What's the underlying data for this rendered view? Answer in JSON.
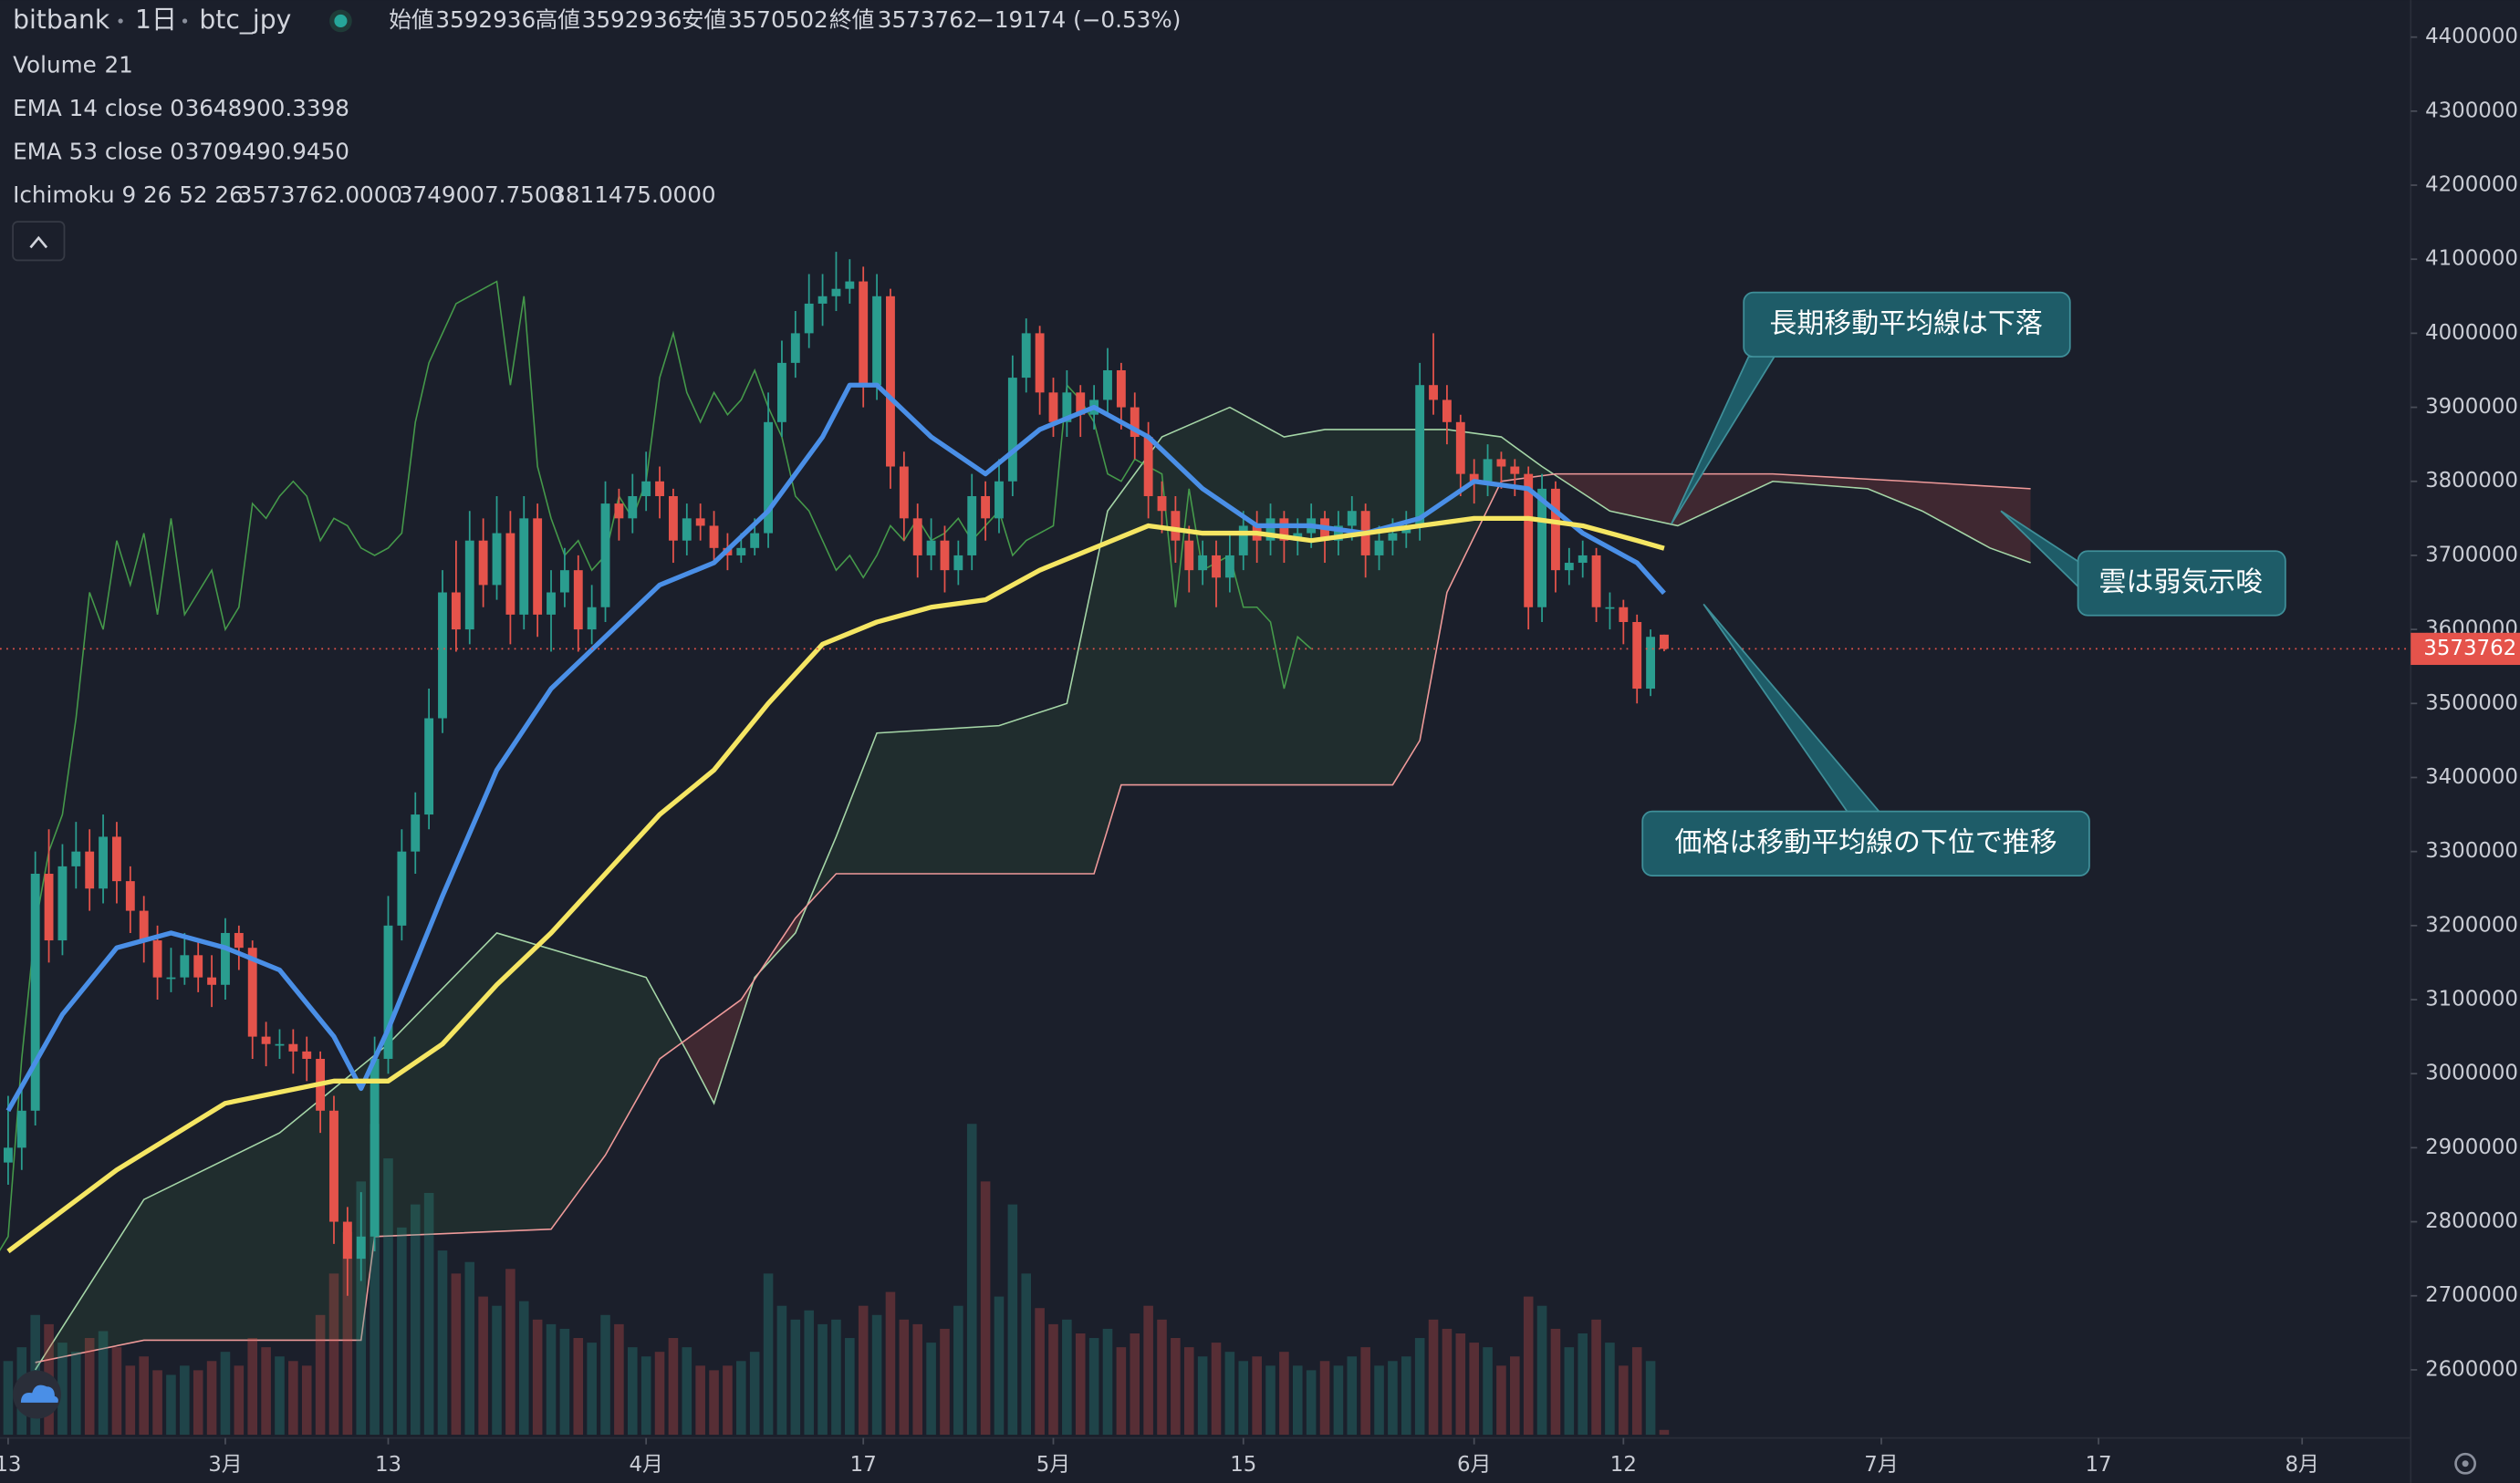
{
  "header": {
    "exchange": "bitbank",
    "interval": "1日",
    "symbol": "btc_jpy",
    "ohlc_labels": [
      "始値",
      "高値",
      "安値",
      "終値"
    ],
    "change": "−19174 (−0.53%)"
  },
  "chart_data": {
    "type": "candlestick",
    "up_color": "#2a9d8f",
    "down_color": "#e5534b",
    "xlim": [
      -0.6,
      177
    ],
    "xticks": [
      {
        "value": 0,
        "label": "13"
      },
      {
        "value": 16,
        "label": "3月"
      },
      {
        "value": 28,
        "label": "13"
      },
      {
        "value": 47,
        "label": "4月"
      },
      {
        "value": 63,
        "label": "17"
      },
      {
        "value": 77,
        "label": "5月"
      },
      {
        "value": 91,
        "label": "15"
      },
      {
        "value": 108,
        "label": "6月"
      },
      {
        "value": 119,
        "label": "12"
      },
      {
        "value": 138,
        "label": "7月"
      },
      {
        "value": 154,
        "label": "17"
      },
      {
        "value": 169,
        "label": "8月"
      }
    ],
    "ylim": [
      2508000,
      4450000
    ],
    "yticks": [
      2600000,
      2700000,
      2800000,
      2900000,
      3000000,
      3100000,
      3200000,
      3300000,
      3400000,
      3500000,
      3600000,
      3700000,
      3800000,
      3900000,
      4000000,
      4100000,
      4200000,
      4300000,
      4400000
    ],
    "candles": [
      [
        2880000,
        2970000,
        2850000,
        2900000
      ],
      [
        2900000,
        2980000,
        2870000,
        2950000
      ],
      [
        2950000,
        3300000,
        2930000,
        3270000
      ],
      [
        3270000,
        3330000,
        3150000,
        3180000
      ],
      [
        3180000,
        3310000,
        3160000,
        3280000
      ],
      [
        3280000,
        3340000,
        3250000,
        3300000
      ],
      [
        3300000,
        3330000,
        3220000,
        3250000
      ],
      [
        3250000,
        3350000,
        3230000,
        3320000
      ],
      [
        3320000,
        3340000,
        3230000,
        3260000
      ],
      [
        3260000,
        3280000,
        3190000,
        3220000
      ],
      [
        3220000,
        3240000,
        3150000,
        3180000
      ],
      [
        3180000,
        3200000,
        3100000,
        3130000
      ],
      [
        3130000,
        3170000,
        3110000,
        3130000
      ],
      [
        3130000,
        3190000,
        3120000,
        3160000
      ],
      [
        3160000,
        3180000,
        3110000,
        3130000
      ],
      [
        3130000,
        3160000,
        3090000,
        3120000
      ],
      [
        3120000,
        3210000,
        3100000,
        3190000
      ],
      [
        3190000,
        3200000,
        3140000,
        3170000
      ],
      [
        3170000,
        3180000,
        3020000,
        3050000
      ],
      [
        3050000,
        3070000,
        3010000,
        3040000
      ],
      [
        3040000,
        3060000,
        3020000,
        3040000
      ],
      [
        3040000,
        3060000,
        3000000,
        3030000
      ],
      [
        3030000,
        3050000,
        2990000,
        3020000
      ],
      [
        3020000,
        3030000,
        2920000,
        2950000
      ],
      [
        2950000,
        2970000,
        2770000,
        2800000
      ],
      [
        2800000,
        2820000,
        2700000,
        2750000
      ],
      [
        2750000,
        2840000,
        2720000,
        2780000
      ],
      [
        2780000,
        3050000,
        2760000,
        3020000
      ],
      [
        3020000,
        3240000,
        3000000,
        3200000
      ],
      [
        3200000,
        3330000,
        3180000,
        3300000
      ],
      [
        3300000,
        3380000,
        3270000,
        3350000
      ],
      [
        3350000,
        3520000,
        3330000,
        3480000
      ],
      [
        3480000,
        3680000,
        3460000,
        3650000
      ],
      [
        3650000,
        3720000,
        3570000,
        3600000
      ],
      [
        3600000,
        3760000,
        3580000,
        3720000
      ],
      [
        3720000,
        3750000,
        3630000,
        3660000
      ],
      [
        3660000,
        3780000,
        3640000,
        3730000
      ],
      [
        3730000,
        3760000,
        3580000,
        3620000
      ],
      [
        3620000,
        3780000,
        3600000,
        3750000
      ],
      [
        3750000,
        3770000,
        3590000,
        3620000
      ],
      [
        3620000,
        3680000,
        3570000,
        3650000
      ],
      [
        3650000,
        3710000,
        3630000,
        3680000
      ],
      [
        3680000,
        3700000,
        3570000,
        3600000
      ],
      [
        3600000,
        3660000,
        3580000,
        3630000
      ],
      [
        3630000,
        3800000,
        3610000,
        3770000
      ],
      [
        3770000,
        3790000,
        3720000,
        3750000
      ],
      [
        3750000,
        3810000,
        3730000,
        3780000
      ],
      [
        3780000,
        3840000,
        3760000,
        3800000
      ],
      [
        3800000,
        3820000,
        3750000,
        3780000
      ],
      [
        3780000,
        3790000,
        3690000,
        3720000
      ],
      [
        3720000,
        3770000,
        3700000,
        3750000
      ],
      [
        3750000,
        3770000,
        3720000,
        3740000
      ],
      [
        3740000,
        3760000,
        3690000,
        3710000
      ],
      [
        3710000,
        3730000,
        3680000,
        3700000
      ],
      [
        3700000,
        3730000,
        3690000,
        3710000
      ],
      [
        3710000,
        3750000,
        3700000,
        3730000
      ],
      [
        3730000,
        3920000,
        3710000,
        3880000
      ],
      [
        3880000,
        3990000,
        3860000,
        3960000
      ],
      [
        3960000,
        4030000,
        3940000,
        4000000
      ],
      [
        4000000,
        4080000,
        3980000,
        4040000
      ],
      [
        4040000,
        4080000,
        4010000,
        4050000
      ],
      [
        4050000,
        4110000,
        4030000,
        4060000
      ],
      [
        4060000,
        4100000,
        4040000,
        4070000
      ],
      [
        4070000,
        4090000,
        3900000,
        3930000
      ],
      [
        3930000,
        4080000,
        3910000,
        4050000
      ],
      [
        4050000,
        4060000,
        3790000,
        3820000
      ],
      [
        3820000,
        3840000,
        3720000,
        3750000
      ],
      [
        3750000,
        3770000,
        3670000,
        3700000
      ],
      [
        3700000,
        3750000,
        3680000,
        3720000
      ],
      [
        3720000,
        3740000,
        3650000,
        3680000
      ],
      [
        3680000,
        3720000,
        3660000,
        3700000
      ],
      [
        3700000,
        3810000,
        3680000,
        3780000
      ],
      [
        3780000,
        3800000,
        3720000,
        3750000
      ],
      [
        3750000,
        3830000,
        3730000,
        3800000
      ],
      [
        3800000,
        3970000,
        3780000,
        3940000
      ],
      [
        3940000,
        4020000,
        3920000,
        4000000
      ],
      [
        4000000,
        4010000,
        3890000,
        3920000
      ],
      [
        3920000,
        3940000,
        3860000,
        3880000
      ],
      [
        3880000,
        3950000,
        3860000,
        3920000
      ],
      [
        3920000,
        3930000,
        3860000,
        3890000
      ],
      [
        3890000,
        3930000,
        3870000,
        3910000
      ],
      [
        3910000,
        3980000,
        3890000,
        3950000
      ],
      [
        3950000,
        3960000,
        3870000,
        3900000
      ],
      [
        3900000,
        3920000,
        3830000,
        3860000
      ],
      [
        3860000,
        3880000,
        3750000,
        3780000
      ],
      [
        3780000,
        3800000,
        3730000,
        3760000
      ],
      [
        3760000,
        3780000,
        3690000,
        3720000
      ],
      [
        3720000,
        3740000,
        3650000,
        3680000
      ],
      [
        3680000,
        3720000,
        3660000,
        3700000
      ],
      [
        3700000,
        3720000,
        3630000,
        3670000
      ],
      [
        3670000,
        3730000,
        3650000,
        3700000
      ],
      [
        3700000,
        3760000,
        3680000,
        3740000
      ],
      [
        3740000,
        3760000,
        3690000,
        3720000
      ],
      [
        3720000,
        3770000,
        3700000,
        3750000
      ],
      [
        3750000,
        3760000,
        3690000,
        3720000
      ],
      [
        3720000,
        3750000,
        3700000,
        3730000
      ],
      [
        3730000,
        3770000,
        3710000,
        3750000
      ],
      [
        3750000,
        3760000,
        3690000,
        3720000
      ],
      [
        3720000,
        3760000,
        3700000,
        3740000
      ],
      [
        3740000,
        3780000,
        3720000,
        3760000
      ],
      [
        3760000,
        3770000,
        3670000,
        3700000
      ],
      [
        3700000,
        3740000,
        3680000,
        3720000
      ],
      [
        3720000,
        3750000,
        3700000,
        3730000
      ],
      [
        3730000,
        3760000,
        3710000,
        3740000
      ],
      [
        3740000,
        3960000,
        3720000,
        3930000
      ],
      [
        3930000,
        4000000,
        3890000,
        3910000
      ],
      [
        3910000,
        3930000,
        3850000,
        3880000
      ],
      [
        3880000,
        3890000,
        3780000,
        3810000
      ],
      [
        3810000,
        3830000,
        3770000,
        3800000
      ],
      [
        3800000,
        3850000,
        3780000,
        3830000
      ],
      [
        3830000,
        3840000,
        3790000,
        3820000
      ],
      [
        3820000,
        3830000,
        3780000,
        3810000
      ],
      [
        3810000,
        3820000,
        3600000,
        3630000
      ],
      [
        3630000,
        3810000,
        3610000,
        3790000
      ],
      [
        3790000,
        3800000,
        3650000,
        3680000
      ],
      [
        3680000,
        3710000,
        3660000,
        3690000
      ],
      [
        3690000,
        3720000,
        3670000,
        3700000
      ],
      [
        3700000,
        3710000,
        3610000,
        3630000
      ],
      [
        3630000,
        3650000,
        3600000,
        3630000
      ],
      [
        3630000,
        3640000,
        3580000,
        3610000
      ],
      [
        3610000,
        3620000,
        3500000,
        3520000
      ],
      [
        3520000,
        3600000,
        3510000,
        3590000
      ],
      [
        3592936,
        3592936,
        3570502,
        3573762
      ]
    ],
    "volume": {
      "name": "Volume",
      "lim": [
        0,
        3000
      ],
      "values": [
        320,
        380,
        520,
        480,
        400,
        360,
        420,
        450,
        380,
        300,
        340,
        280,
        260,
        300,
        280,
        320,
        360,
        300,
        420,
        380,
        340,
        320,
        300,
        520,
        700,
        880,
        1100,
        1350,
        1200,
        900,
        1000,
        1050,
        800,
        700,
        750,
        600,
        560,
        720,
        580,
        500,
        480,
        460,
        420,
        400,
        520,
        480,
        380,
        340,
        360,
        420,
        380,
        300,
        280,
        300,
        320,
        360,
        700,
        560,
        500,
        540,
        480,
        500,
        420,
        560,
        520,
        620,
        500,
        480,
        400,
        460,
        560,
        1350,
        1100,
        600,
        1000,
        700,
        550,
        480,
        500,
        440,
        420,
        460,
        380,
        440,
        560,
        500,
        420,
        380,
        340,
        400,
        360,
        320,
        340,
        300,
        360,
        300,
        280,
        320,
        300,
        340,
        380,
        300,
        320,
        340,
        420,
        500,
        460,
        440,
        400,
        380,
        300,
        340,
        600,
        560,
        460,
        380,
        440,
        500,
        400,
        300,
        380,
        320,
        21
      ]
    },
    "ema": [
      {
        "name": "EMA 14 close 0",
        "color": "#4a8fe7",
        "value_label": "3648900.3398",
        "x": [
          0,
          4,
          8,
          12,
          16,
          20,
          24,
          26,
          28,
          32,
          36,
          40,
          44,
          48,
          52,
          56,
          60,
          62,
          64,
          68,
          72,
          76,
          80,
          84,
          88,
          92,
          96,
          100,
          104,
          108,
          112,
          116,
          120,
          122
        ],
        "values": [
          2950000,
          3080000,
          3170000,
          3190000,
          3170000,
          3140000,
          3050000,
          2980000,
          3060000,
          3240000,
          3410000,
          3520000,
          3590000,
          3660000,
          3690000,
          3760000,
          3860000,
          3930000,
          3930000,
          3860000,
          3810000,
          3870000,
          3900000,
          3860000,
          3790000,
          3740000,
          3740000,
          3730000,
          3750000,
          3800000,
          3790000,
          3730000,
          3690000,
          3648900.3398
        ]
      },
      {
        "name": "EMA 53 close 0",
        "color": "#f5e663",
        "value_label": "3709490.9450",
        "x": [
          0,
          8,
          16,
          24,
          28,
          32,
          36,
          40,
          44,
          48,
          52,
          56,
          60,
          64,
          68,
          72,
          76,
          80,
          84,
          88,
          92,
          96,
          100,
          104,
          108,
          112,
          116,
          120,
          122
        ],
        "values": [
          2760000,
          2870000,
          2960000,
          2990000,
          2990000,
          3040000,
          3120000,
          3190000,
          3270000,
          3350000,
          3410000,
          3500000,
          3580000,
          3610000,
          3630000,
          3640000,
          3680000,
          3710000,
          3740000,
          3730000,
          3730000,
          3720000,
          3730000,
          3740000,
          3750000,
          3750000,
          3740000,
          3720000,
          3709490.945
        ]
      }
    ],
    "ichimoku": {
      "name": "Ichimoku 9 26 52 26",
      "lagging_shift": 26,
      "lagging_color": "#4caf50",
      "value_labels": [
        "3573762.0000",
        "3749007.7500",
        "3811475.0000"
      ],
      "label_colors": [
        "#4caf50",
        "#a5d6a7",
        "#ef9a9a"
      ],
      "span_a": {
        "color": "#a5d6a7",
        "fill": "#4caf50",
        "x": [
          2,
          10,
          20,
          28,
          36,
          47,
          50,
          52,
          55,
          58,
          61,
          64,
          73,
          78,
          81,
          85,
          90,
          94,
          97,
          106,
          110,
          113,
          118,
          123,
          130,
          137,
          141,
          146,
          149
        ],
        "values": [
          2600000,
          2830000,
          2920000,
          3040000,
          3190000,
          3130000,
          3030000,
          2960000,
          3130000,
          3190000,
          3320000,
          3460000,
          3470000,
          3500000,
          3760000,
          3860000,
          3900000,
          3860000,
          3870000,
          3870000,
          3860000,
          3820000,
          3760000,
          3740000,
          3800000,
          3790000,
          3760000,
          3710000,
          3690000
        ]
      },
      "span_b": {
        "color": "#ef9a9a",
        "fill": "#e5534b",
        "x": [
          2,
          10,
          26,
          27,
          40,
          44,
          48,
          54,
          58,
          61,
          80,
          82,
          102,
          104,
          106,
          110,
          114,
          130,
          140,
          149
        ],
        "values": [
          2610000,
          2640000,
          2640000,
          2780000,
          2790000,
          2890000,
          3020000,
          3100000,
          3210000,
          3270000,
          3270000,
          3390000,
          3390000,
          3450000,
          3650000,
          3800000,
          3810000,
          3810000,
          3800000,
          3790000
        ]
      }
    },
    "annotations": [
      {
        "text": "長期移動平均線は下落"
      },
      {
        "text": "雲は弱気示唆"
      },
      {
        "text": "価格は移動平均線の下位で推移"
      }
    ]
  }
}
